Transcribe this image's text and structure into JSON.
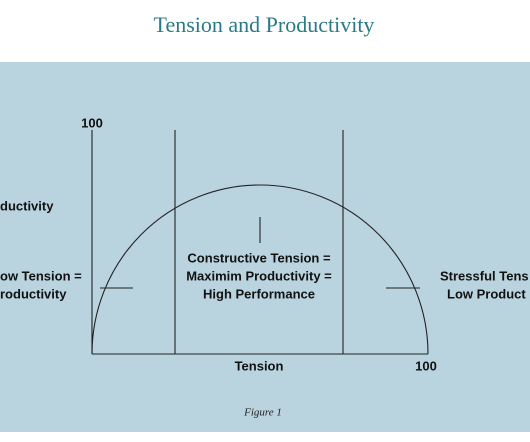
{
  "header": {
    "title": "Tension and Productivity"
  },
  "diagram": {
    "y_axis_top_label": "100",
    "y_axis_label": "ductivity",
    "x_axis_label": "Tension",
    "x_axis_end_label": "100",
    "left_zone": [
      "ow Tension =",
      "roductivity"
    ],
    "center_zone": [
      "Constructive Tension =",
      "Maximim Productivity =",
      "High Performance"
    ],
    "right_zone": [
      "Stressful Tens",
      "Low Product"
    ]
  },
  "caption": "Figure 1"
}
